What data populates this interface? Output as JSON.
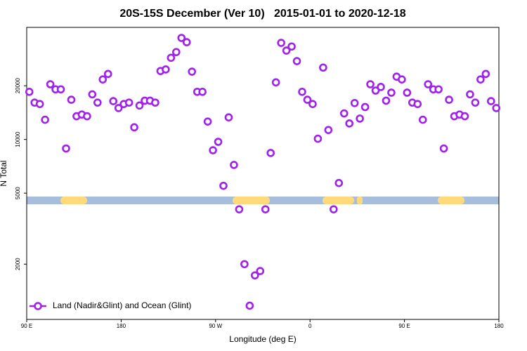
{
  "chart_data": {
    "type": "scatter",
    "title": "20S-15S December (Ver 10)   2015-01-01 to 2020-12-18",
    "x_label": "Longitude (deg E)",
    "y_label": "N Total",
    "xlim": [
      90,
      540
    ],
    "xticks": [
      {
        "value": 90,
        "label": "90 E"
      },
      {
        "value": 180,
        "label": "180"
      },
      {
        "value": 270,
        "label": "90 W"
      },
      {
        "value": 360,
        "label": "0"
      },
      {
        "value": 450,
        "label": "90 E"
      },
      {
        "value": 540,
        "label": "180"
      }
    ],
    "ylim": [
      980,
      42500
    ],
    "yticks": [
      2000,
      5000,
      10000,
      20000
    ],
    "yscale": "log",
    "legend": "lower left",
    "series": [
      {
        "name": "Land (Nadir&Glint) and Ocean (Glint)",
        "color": "#a020f0",
        "x": [
          92.5,
          97.5,
          102.5,
          107.5,
          112.5,
          117.5,
          122.5,
          127.5,
          132.5,
          137.5,
          142.5,
          147.5,
          152.5,
          157.5,
          162.5,
          167.5,
          172.5,
          177.5,
          182.5,
          187.5,
          192.5,
          197.5,
          202.5,
          207.5,
          212.5,
          217.5,
          222.5,
          227.5,
          232.5,
          237.5,
          242.5,
          247.5,
          252.5,
          257.5,
          262.5,
          267.5,
          272.5,
          277.5,
          282.5,
          287.5,
          292.5,
          297.5,
          302.5,
          307.5,
          312.5,
          317.5,
          322.5,
          327.5,
          332.5,
          337.5,
          342.5,
          347.5,
          352.5,
          357.5,
          362.5,
          367.5,
          372.5,
          377.5,
          382.5,
          387.5,
          392.5,
          397.5,
          402.5,
          407.5,
          412.5,
          417.5,
          422.5,
          427.5,
          432.5,
          437.5,
          442.5,
          447.5,
          452.5,
          457.5,
          462.5,
          467.5,
          472.5,
          477.5,
          482.5,
          487.5,
          492.5,
          497.5,
          502.5,
          507.5,
          512.5,
          517.5,
          522.5,
          527.5,
          532.5,
          537.5
        ],
        "values": [
          18500,
          16100,
          15800,
          12900,
          20400,
          19100,
          19100,
          8900,
          16700,
          13500,
          13800,
          13500,
          17900,
          16100,
          21700,
          23300,
          16400,
          15000,
          15800,
          16100,
          11700,
          15500,
          16500,
          16500,
          16100,
          24200,
          24700,
          28700,
          30900,
          37100,
          35100,
          24000,
          18500,
          18500,
          12600,
          8700,
          9700,
          5500,
          13300,
          7200,
          4060,
          2000,
          1170,
          1730,
          1830,
          4060,
          8400,
          20900,
          34800,
          31500,
          33200,
          27500,
          18500,
          16700,
          15800,
          10100,
          25300,
          11300,
          4060,
          5700,
          14000,
          12300,
          16000,
          13100,
          15200,
          20400,
          18800,
          19700,
          16500,
          18300,
          22500,
          21700,
          18300,
          16100,
          15800,
          12900,
          20400,
          19100,
          19100,
          8900,
          16700,
          13500,
          13800,
          13500,
          17900,
          16100,
          21700,
          23300,
          16400,
          15000
        ]
      }
    ]
  }
}
